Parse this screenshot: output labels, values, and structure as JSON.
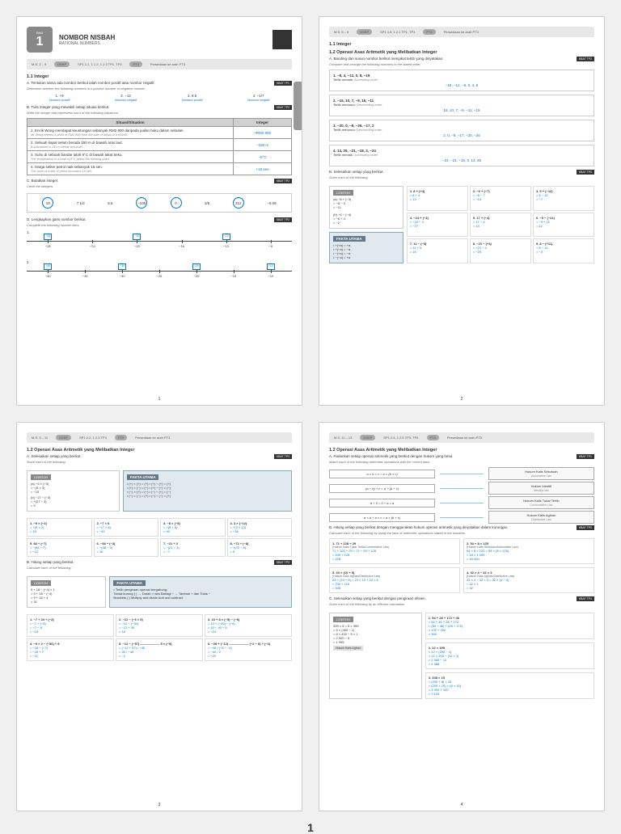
{
  "p1": {
    "bab": "BAB",
    "num": "1",
    "title": "NOMBOR NISBAH",
    "sub": "RATIONAL NUMBERS",
    "bar_ms": "M.S. 2 – 9",
    "bar_dskp": "SP1.1.1, 1.1.2, 1.1.3 TP1, TP3",
    "bar_pt3": "PT3",
    "bar_arah": "Persediaan ke arah PT3",
    "s11": "1.1 Integer",
    "a_inst": "A. Tentukan sama ada nombor berikut ialah nombor positif atau nombor negatif.",
    "a_inst_it": "Determine whether the following numbers is a positive number or negative number.",
    "a_tag": "KBAT TP1",
    "a_items": [
      {
        "q": "1. +9",
        "a": "Nombor positif"
      },
      {
        "q": "2. −12",
        "a": "Nombor negatif"
      },
      {
        "q": "3. 8.5",
        "a": "Nombor positif"
      },
      {
        "q": "4. −1/7",
        "a": "Nombor negatif"
      }
    ],
    "b_inst": "B. Tulis integer yang mewakili setiap situasi berikut.",
    "b_inst_it": "Write the integer that represents each of the following situations.",
    "b_tag": "KBAT TP2",
    "b_th1": "Situasi/Situation",
    "b_th2": "Integer",
    "b_rows": [
      {
        "t": "1. Encik Wong mendapat keuntungan sebanyak RM2 800 daripada jualan buku dalam sebulan.",
        "it": "Mr Wong earned a profit of RM2 800 from the sale of books in a month.",
        "a": "+RM2 800"
      },
      {
        "t": "2. Sebuah kapal selam berada 150 m di bawah aras laut.",
        "it": "A submarine is 150 m below sea level.",
        "a": "−150 m"
      },
      {
        "t": "3. Suhu di sebuah bandar ialah 8°C di bawah takat beku.",
        "it": "The temperature in a town is 8°C below the freezing point.",
        "a": "−8°C"
      },
      {
        "t": "4. Harga seliter petrol naik sebanyak 15 sen.",
        "it": "The price of a litre of petrol increases 15 sen.",
        "a": "+15 sen"
      }
    ],
    "c_inst": "C. Bulatkan integer.",
    "c_inst_it": "Circle the integers.",
    "c_tag": "KBAT TP2",
    "c_items": [
      "19",
      "7 1/2",
      "5.5",
      "−106",
      "0",
      "3/5",
      "312",
      "−0.08"
    ],
    "c_circled": [
      0,
      3,
      4,
      6
    ],
    "d_inst": "D. Lengkapkan garis nombor berikut.",
    "d_inst_it": "Complete the following number lines.",
    "d_tag": "KBAT TP2",
    "d1_marks": [
      "−28",
      "−24",
      "−20",
      "−16",
      "−12",
      "−8"
    ],
    "d2_marks": [
      "−40",
      "−35",
      "−30",
      "−25",
      "−20",
      "−15",
      "−10"
    ],
    "pagenum": "1"
  },
  "p2": {
    "bar_ms": "M.S. 8 – 9",
    "bar_dskp": "SP1.1.6, 1.2.1 TP1, TP3",
    "bar_pt3": "PT3",
    "bar_arah": "Persediaan ke arah PT3",
    "s11": "1.1 Integer",
    "s12": "1.2 Operasi Asas Aritmetik yang Melibatkan Integer",
    "a_inst": "A. Banding dan susun nombor berikut mengikut tertib yang dinyatakan.",
    "a_inst_it": "Compare and arrange the following numbers in the stated order.",
    "a_tag": "KBAT TP2",
    "a_rows": [
      {
        "q": "1. −8, 4, −12, 0, 8, −19",
        "label": "Tertib menaik:",
        "it": "Ascending order",
        "a": "−19, −12, −8, 0, 4, 8"
      },
      {
        "q": "2. −15, 10, 7, −9, 16, −11",
        "label": "Tertib menurun:",
        "it": "Descending order",
        "a": "16, 10, 7, −9, −11, −15"
      },
      {
        "q": "3. −20, 0, −8, −26, −17, 2",
        "label": "Tertib menurun:",
        "it": "Descending order",
        "a": "2, 0, −8, −17, −20, −26"
      },
      {
        "q": "4. 14, 25, −21, −18, 3, −24",
        "label": "Tertib menaik:",
        "it": "Ascending order",
        "a": "−24, −21, −18, 3, 14, 25"
      }
    ],
    "b_inst": "B. Selesaikan setiap yang berikut.",
    "b_inst_it": "Solve each of the following.",
    "b_tag": "KBAT TP3",
    "contoh": "CONTOH",
    "ex_a": "(a) −8 + (−3)\n= −8 − 3\n= −11",
    "ex_b": "(b) −6 − (−4)\n= −6 + 4\n= −2",
    "b_cells": [
      {
        "q": "1. 8 + (+4)",
        "a": "= 8 + 4\n= 12"
      },
      {
        "q": "2. −6 + (−7)",
        "a": "= −6 − 7\n= −13"
      },
      {
        "q": "3. 5 + (−12)",
        "a": "= 5 − 12\n= −7"
      },
      {
        "q": "4. −24 + (−3)",
        "a": "= −24 − 3\n= −27"
      },
      {
        "q": "5. 17 + (−4)",
        "a": "= 17 − 4\n= 13"
      },
      {
        "q": "6. −9 − (−21)",
        "a": "= −9 + 21\n= 12"
      },
      {
        "q": "7. 11 − (−5)",
        "a": "= 11 + 5\n= 16"
      },
      {
        "q": "8. −21 − (+4)",
        "a": "= −21 − 4\n= −25"
      },
      {
        "q": "9. 8 − (+11)",
        "a": "= 8 − 11\n= −3"
      }
    ],
    "fakta_title": "FAKTA UTAMA",
    "fakta": "• +(+a) = +a\n• +(−a) = −a\n• −(+a) = −a\n• −(−a) = +a",
    "pagenum": "2"
  },
  "p3": {
    "bar_ms": "M.S. 9 – 11",
    "bar_dskp": "SP1.2.2, 1.2.3 TP3",
    "bar_pt3": "PT3",
    "bar_arah": "Persediaan ke arah PT3",
    "s12": "1.2 Operasi Asas Aritmetik yang Melibatkan Integer",
    "a_inst": "A. Selesaikan setiap yang berikut.",
    "a_inst_it": "Solve each of the following.",
    "a_tag": "KBAT TP3",
    "contoh": "CONTOH",
    "ex_a": "(a) −5 × (+3)\n= −(5 × 3)\n= −15",
    "ex_b": "(b) −27 ÷ (−3)\n= +(27 ÷ 3)\n= 9",
    "fakta_title": "FAKTA UTAMA",
    "fakta": "• (+) × (+) = (+)   • (+) ÷ (+) = (+)\n• (+) × (−) = (−)   • (+) ÷ (−) = (−)\n• (−) × (+) = (−)   • (−) ÷ (+) = (−)\n• (−) × (−) = (+)   • (−) ÷ (−) = (+)",
    "a_cells": [
      {
        "q": "1. −9 × (−2)",
        "a": "= +(9 × 2)\n= 18"
      },
      {
        "q": "2. −7 × 6",
        "a": "= −(7 × 6)\n= −42"
      },
      {
        "q": "3. −8 × (−5)",
        "a": "= +(8 × 5)\n= 40"
      },
      {
        "q": "4. 3 × (−12)",
        "a": "= −(3 × 12)\n= −36"
      },
      {
        "q": "5. 84 ÷ (−7)",
        "a": "= −(84 ÷ 7)\n= −12"
      },
      {
        "q": "6. −48 ÷ (−3)",
        "a": "= +(48 ÷ 3)\n= 16"
      },
      {
        "q": "7. −21 ÷ 3",
        "a": "= −(21 ÷ 3)\n= −7"
      },
      {
        "q": "8. −72 ÷ (−8)",
        "a": "= +(72 ÷ 8)\n= 9"
      }
    ],
    "b_inst": "B. Hitung setiap yang berikut.",
    "b_inst_it": "Calculate each of the following.",
    "b_tag": "KBAT TP3",
    "ex_c": "9 + 18 − (−4) × 1\n= 9 + 18 − (−4)\n= 9 + 18 + 4\n= 31",
    "fakta2": "• Tertib pengiraan operasi bergabung:\nTanda kurung ( )  →  Darab × dan Bahagi ÷  →  Tambah + dan Tolak −\nBrackets ( )        Multiply and divide     Add and subtract",
    "b_cells": [
      {
        "q": "1. −7 + 24 ÷ (−3)",
        "a": "= −7 + (−8)\n= −7 − 8\n= −15"
      },
      {
        "q": "2. −12 − (−6 × 5)",
        "a": "= −12 − (−30)\n= −12 + 30\n= 18"
      },
      {
        "q": "3. 10 + 8 × (−5) − (−6)",
        "a": "= 10 + (−40) − (−6)\n= 10 − 40 + 6\n= −24"
      },
      {
        "q": "4. −9 × 2 − (−56) ÷ 8",
        "a": "= −18 − (−7)\n= −18 + 7\n= −11"
      },
      {
        "q": "5. −12 − (−57)\n   ——————\n     5 × (−9)",
        "a": "= (−12 + 57) / −45\n= 45 / −45\n= −1"
      },
      {
        "q": "6. −28 + (−12)\n   ——————\n   (−2 − 6) ÷ (−4)",
        "a": "= −40 / (−8 ÷ −4)\n= −40 / 2\n= −20"
      }
    ],
    "pagenum": "3"
  },
  "p4": {
    "bar_ms": "M.S. 11 – 13",
    "bar_dskp": "SP1.2.4, 1.2.5 TP3, TP4",
    "bar_pt3": "PT3",
    "bar_arah": "Persediaan ke arah PT3",
    "s12": "1.2 Operasi Asas Aritmetik yang Melibatkan Integer",
    "a_inst": "A. Padankan setiap operasi aritmetik yang berikut dengan hukum yang betul.",
    "a_inst_it": "Match each of the following arithmetic operations with the correct laws.",
    "a_tag": "KBAT TP1",
    "laws": [
      {
        "f": "a × b × c = a × (b × c)",
        "n": "Hukum Kalis Sekutuan",
        "ni": "Associative Law"
      },
      {
        "f": "(a + b) + c = a + (b + c)",
        "n": "Hukum Identiti",
        "ni": "Identity Law"
      },
      {
        "f": "a + 0 = 0 + a = a",
        "n": "Hukum Kalis Tukar Tertib",
        "ni": "Commutative Law"
      },
      {
        "f": "a × b + a × c = a × (b + c)",
        "n": "Hukum Kalis Agihan",
        "ni": "Distributive Law"
      }
    ],
    "b_inst": "B. Hitung setiap yang berikut dengan menggunakan hukum operasi aritmetik yang dinyatakan dalam kurungan.",
    "b_inst_it": "Calculate each of the following by using the laws of arithmetic operations stated in the brackets.",
    "b_tag": "KBAT TP3",
    "b_cells": [
      {
        "q": "1. 71 + 128 + 29",
        "law": "(Hukum Kalis Tukar Tertib/Commutative Law)",
        "a": "71 + 128 + 29 = 71 + 29 + 128\n= 100 + 128\n= 228"
      },
      {
        "q": "2. 54 × 8 × 125",
        "law": "(Hukum Kalis Sekutuan/Associative Law)",
        "a": "54 × 8 × 125 = 54 × (8 × 125)\n= 54 × 1 000\n= 54 000"
      },
      {
        "q": "3. 23 × (10 + 5)",
        "law": "(Hukum Kalis Agihan/Distributive Law)",
        "a": "23 × (10 + 5) = 23 × 10 + 23 × 5\n= 230 + 115\n= 345"
      },
      {
        "q": "4. 32 × 4 − 32 × 3",
        "law": "(Hukum Kalis Agihan/Distributive Law)",
        "a": "32 × 4 − 32 × 3 = 32 × (4 − 3)\n= 32 × 1\n= 32"
      }
    ],
    "c_inst": "C. Selesaikan setiap yang berikut dengan pengiraan efisien.",
    "c_inst_it": "Solve each of the following by an efficient calculation.",
    "c_tag": "KBAT TP4",
    "contoh": "CONTOH",
    "ex": "399 × 5 = 5 × 399\n= 5 × (400 − 1)\n= 5 × 400 − 5 × 1\n= 2 000 − 5\n= 1 995",
    "ex_tag": "Hukum Kalis Agihan",
    "c_cells": [
      {
        "q": "1. 54 + 28 + 172 + 46",
        "a": "= 54 + 46 + 28 + 172\n= (54 + 46) + (28 + 172)\n= 100 + 200\n= 300"
      },
      {
        "q": "2. 12 × 199",
        "a": "= 12 × (200 − 1)\n= 12 × 200 − (12 × 1)\n= 2 400 − 12\n= 2 388"
      },
      {
        "q": "3. 208 × 15",
        "a": "= (200 + 8) × 15\n= (200 × 15) + (8 × 15)\n= 3 000 + 120\n= 3 120"
      }
    ],
    "pagenum": "4"
  },
  "bignum": "1"
}
